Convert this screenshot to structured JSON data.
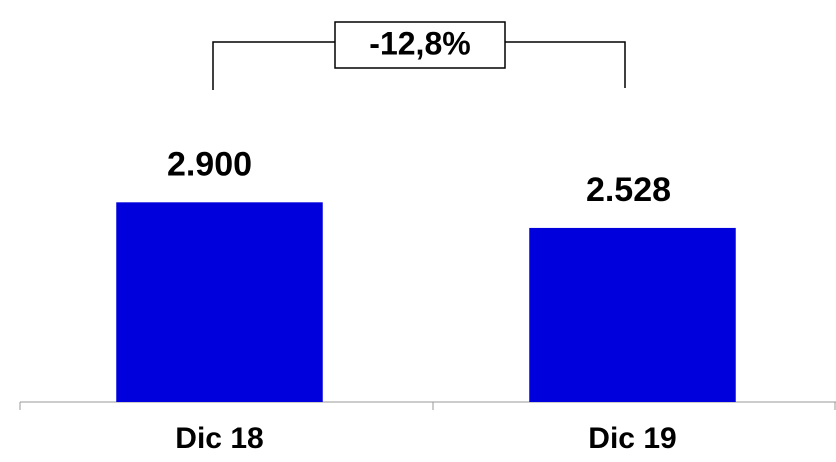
{
  "chart_data": {
    "type": "bar",
    "categories": [
      "Dic 18",
      "Dic 19"
    ],
    "values": [
      2900,
      2528
    ],
    "value_labels": [
      "2.900",
      "2.528"
    ],
    "color": "#0000dd",
    "ylim": [
      0,
      3500
    ],
    "annotation": "-12,8%"
  }
}
